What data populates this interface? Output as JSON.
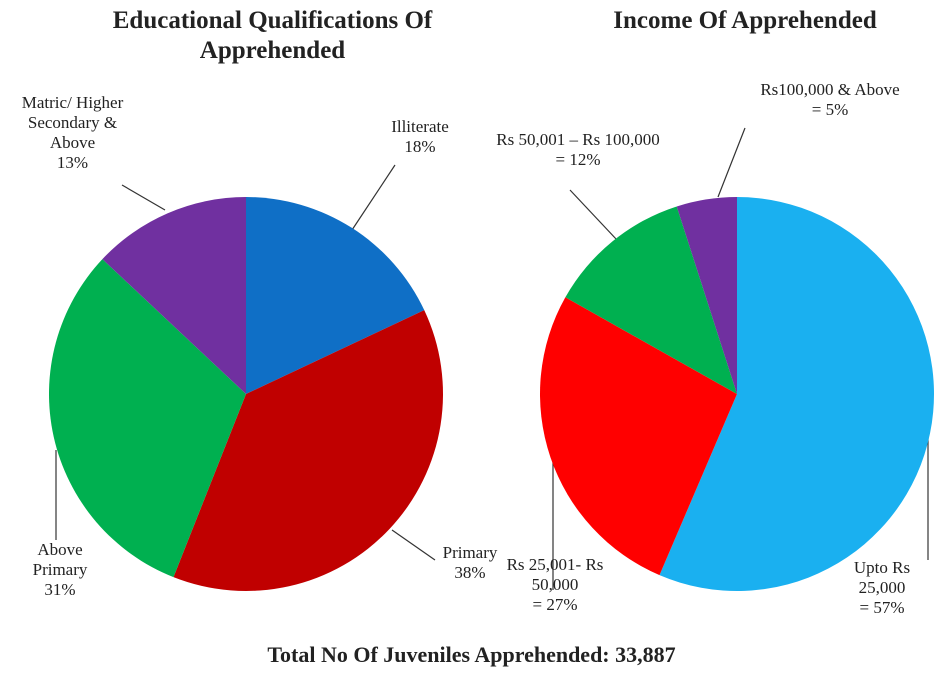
{
  "chart_data": [
    {
      "type": "pie",
      "title": "Educational Qualifications Of Apprehended",
      "categories": [
        "Illiterate",
        "Primary",
        "Above Primary",
        "Matric/ Higher Secondary & Above"
      ],
      "values": [
        18,
        38,
        31,
        13
      ],
      "value_labels": [
        "18%",
        "38%",
        "31%",
        "13%"
      ],
      "colors": [
        "#0f6fc6",
        "#c00000",
        "#00b050",
        "#7030a0"
      ]
    },
    {
      "type": "pie",
      "title": "Income Of Apprehended",
      "categories": [
        "Upto Rs 25,000",
        "Rs 25,001- Rs 50,000",
        "Rs 50,001 – Rs 100,000",
        "Rs100,000 & Above"
      ],
      "values": [
        57,
        27,
        12,
        5
      ],
      "value_labels": [
        "= 57%",
        "= 27%",
        "= 12%",
        "= 5%"
      ],
      "colors": [
        "#1ab0f0",
        "#ff0000",
        "#00b050",
        "#7030a0"
      ]
    }
  ],
  "footer": "Total No Of Juveniles Apprehended: 33,887"
}
